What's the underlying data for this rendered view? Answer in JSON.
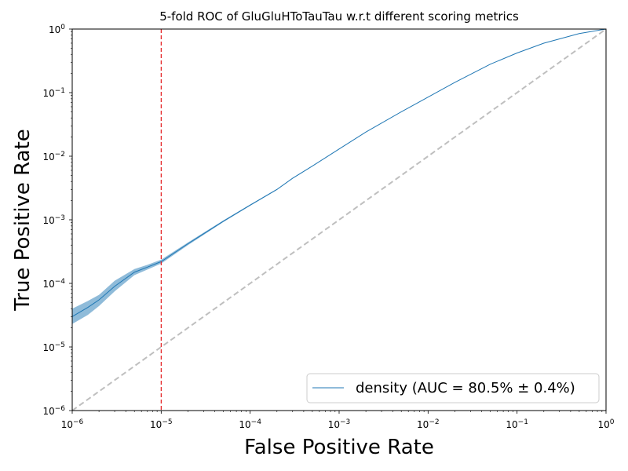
{
  "chart_data": {
    "type": "line",
    "title": "5-fold ROC of GluGluHToTauTau w.r.t different scoring metrics",
    "xlabel": "False Positive Rate",
    "ylabel": "True Positive Rate",
    "xscale": "log",
    "yscale": "log",
    "xlim": [
      1e-06,
      1
    ],
    "ylim": [
      1e-06,
      1
    ],
    "x_ticks": [
      {
        "base": "10",
        "exp": "−6",
        "value": 1e-06
      },
      {
        "base": "10",
        "exp": "−5",
        "value": 1e-05
      },
      {
        "base": "10",
        "exp": "−4",
        "value": 0.0001
      },
      {
        "base": "10",
        "exp": "−3",
        "value": 0.001
      },
      {
        "base": "10",
        "exp": "−2",
        "value": 0.01
      },
      {
        "base": "10",
        "exp": "−1",
        "value": 0.1
      },
      {
        "base": "10",
        "exp": "0",
        "value": 1
      }
    ],
    "y_ticks": [
      {
        "base": "10",
        "exp": "−6",
        "value": 1e-06
      },
      {
        "base": "10",
        "exp": "−5",
        "value": 1e-05
      },
      {
        "base": "10",
        "exp": "−4",
        "value": 0.0001
      },
      {
        "base": "10",
        "exp": "−3",
        "value": 0.001
      },
      {
        "base": "10",
        "exp": "−2",
        "value": 0.01
      },
      {
        "base": "10",
        "exp": "−1",
        "value": 0.1
      },
      {
        "base": "10",
        "exp": "0",
        "value": 1
      }
    ],
    "series": [
      {
        "name": "density (AUC = 80.5% ± 0.4%)",
        "color": "#1f77b4",
        "band_color": "#1f77b4",
        "x": [
          1e-06,
          1.5e-06,
          2e-06,
          3e-06,
          5e-06,
          7e-06,
          1e-05,
          2e-05,
          5e-05,
          0.0001,
          0.0002,
          0.0003,
          0.0005,
          0.001,
          0.002,
          0.005,
          0.01,
          0.02,
          0.05,
          0.1,
          0.2,
          0.5,
          1
        ],
        "y": [
          3e-05,
          4.2e-05,
          5.5e-05,
          9e-05,
          0.00015,
          0.00018,
          0.00022,
          0.00042,
          0.00095,
          0.0017,
          0.003,
          0.0045,
          0.007,
          0.013,
          0.024,
          0.05,
          0.085,
          0.145,
          0.28,
          0.42,
          0.6,
          0.85,
          1.0
        ],
        "y_lower": [
          2.3e-05,
          3.2e-05,
          4.4e-05,
          7.5e-05,
          0.000135,
          0.000165,
          0.000205,
          0.0004,
          0.00092,
          0.00166,
          0.00295,
          0.00445,
          0.00695,
          0.013,
          0.024,
          0.05,
          0.085,
          0.145,
          0.28,
          0.42,
          0.6,
          0.85,
          1.0
        ],
        "y_upper": [
          4e-05,
          5.3e-05,
          6.6e-05,
          0.00011,
          0.000168,
          0.000196,
          0.000236,
          0.00044,
          0.00098,
          0.00174,
          0.00305,
          0.00455,
          0.00705,
          0.013,
          0.024,
          0.05,
          0.085,
          0.145,
          0.28,
          0.42,
          0.6,
          0.85,
          1.0
        ]
      }
    ],
    "reference_diagonal": {
      "style": "dashed",
      "color": "#bfbfbf"
    },
    "threshold_line": {
      "x": 1e-05,
      "style": "dashed",
      "color": "#e31a1c"
    },
    "legend": {
      "position": "bottom-right",
      "label": "density (AUC = 80.5% ± 0.4%)"
    },
    "grid": false
  }
}
